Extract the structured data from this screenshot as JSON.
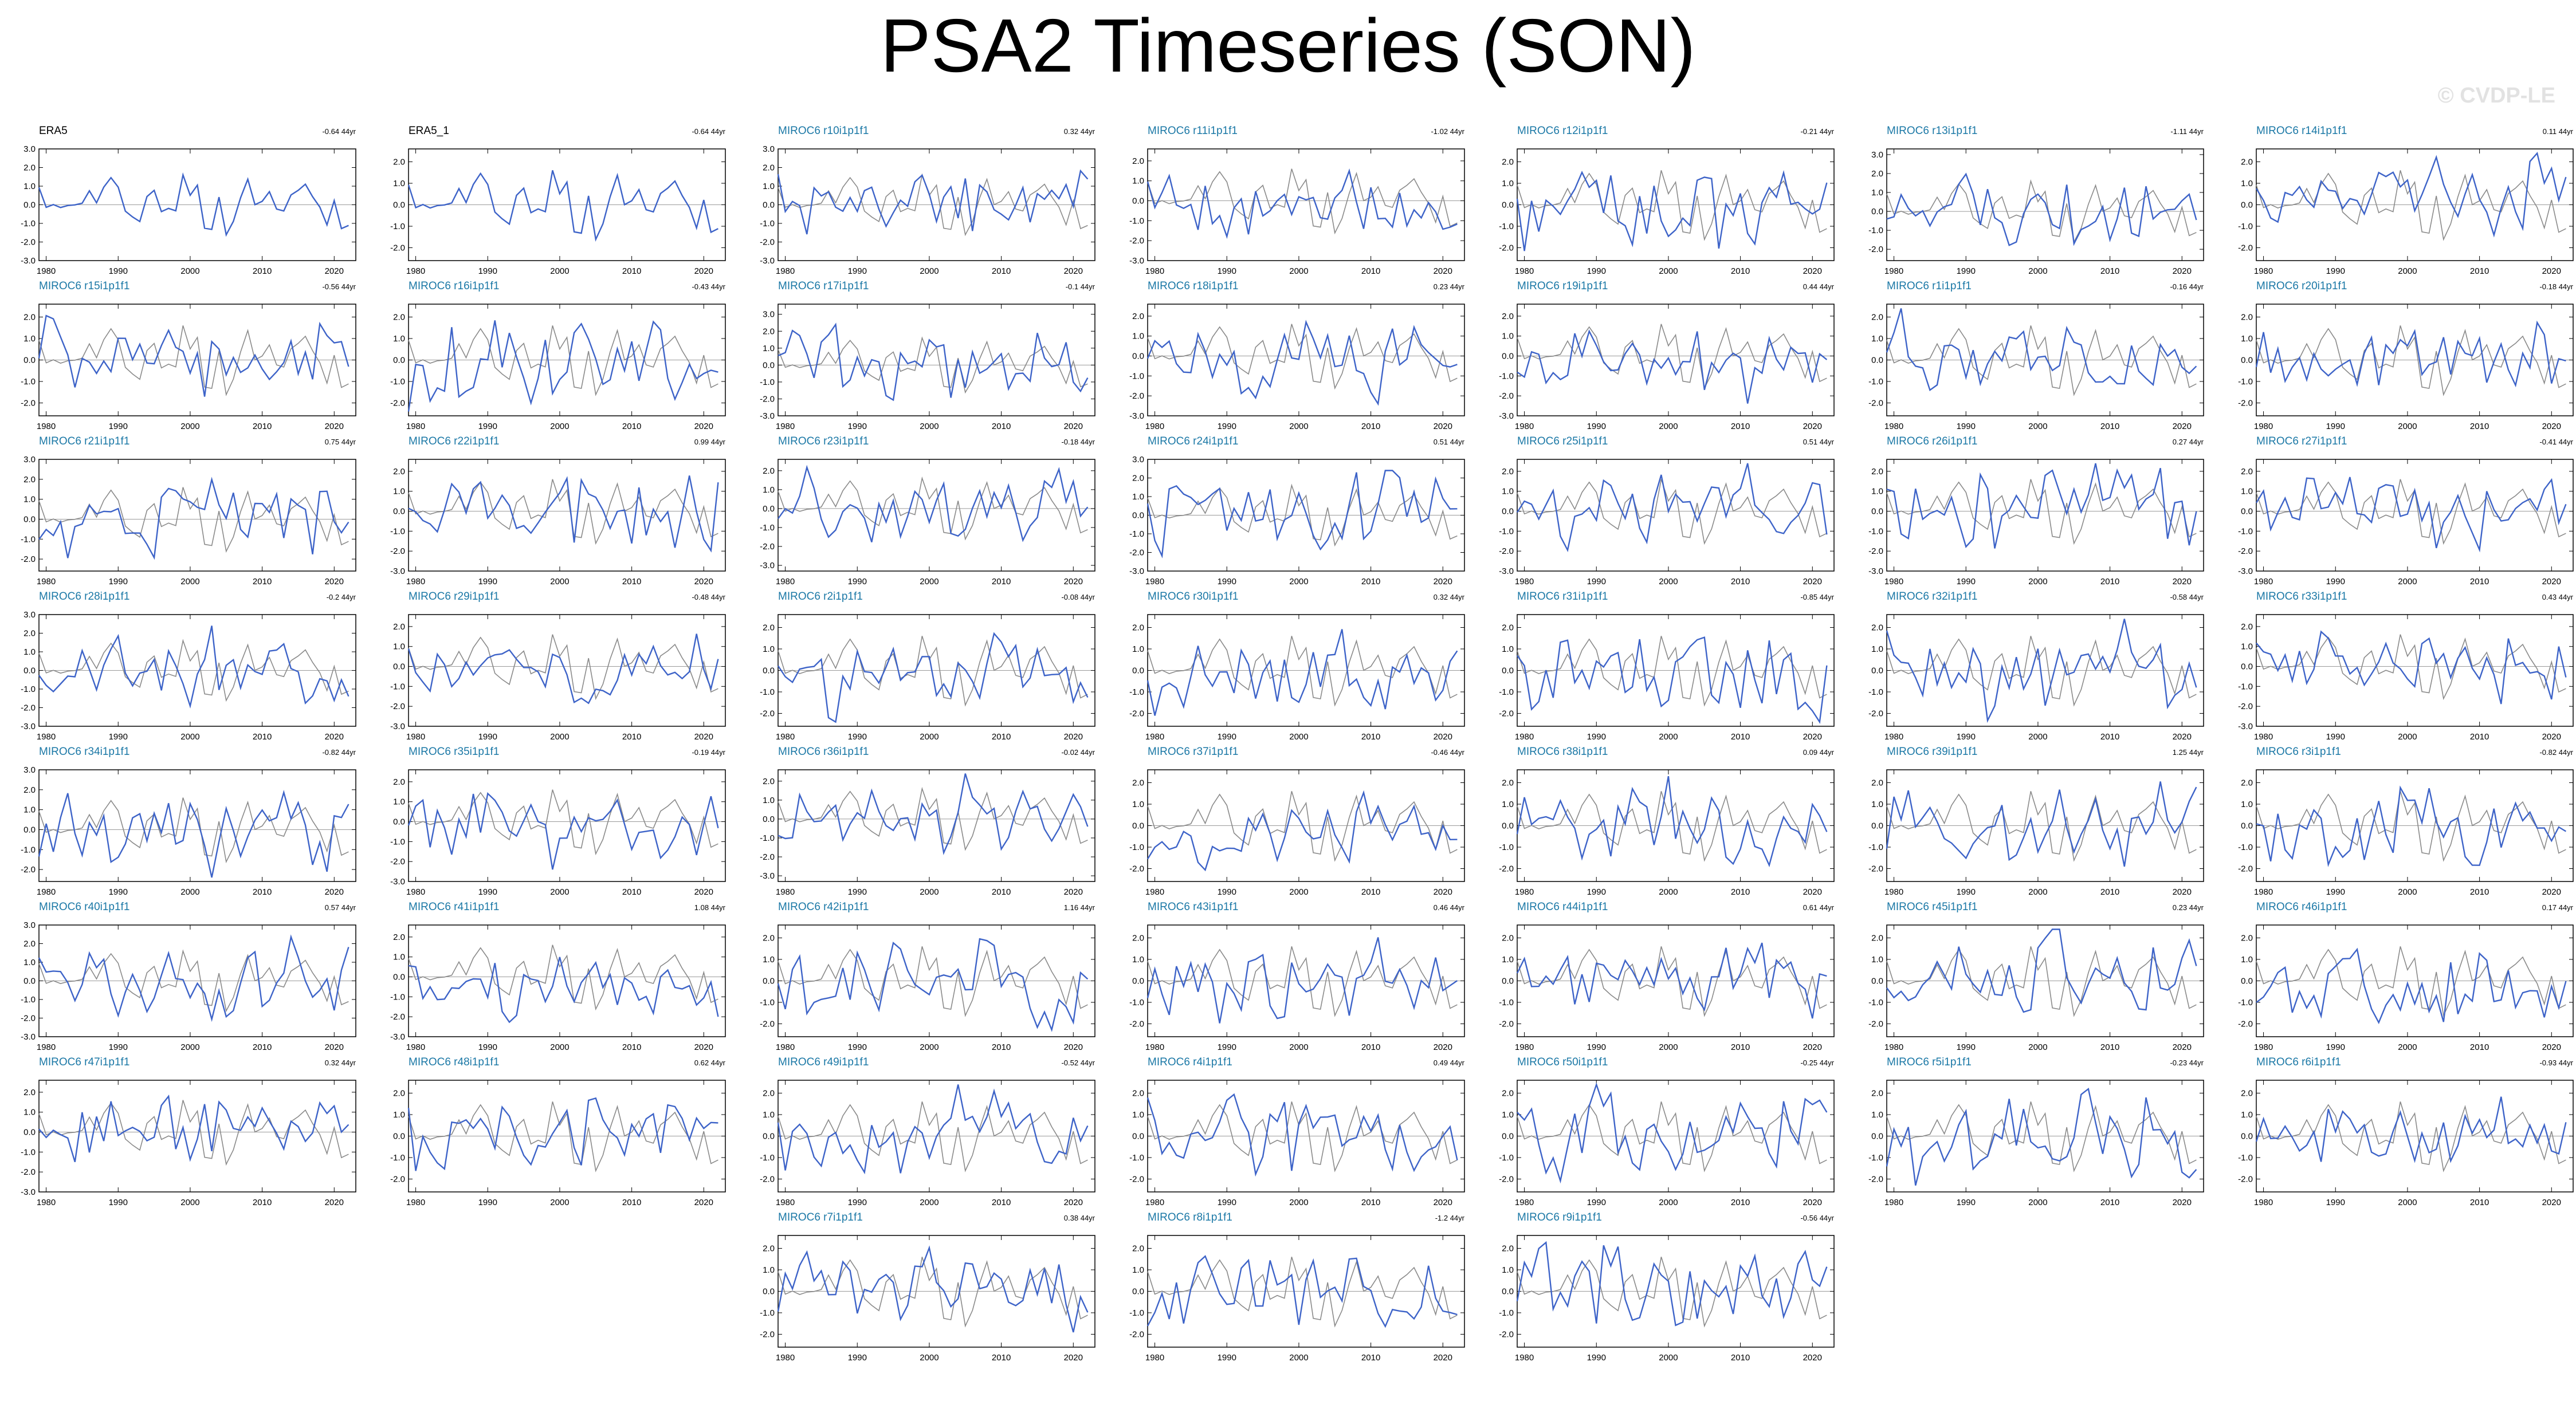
{
  "page": {
    "title": "PSA2 Timeseries (SON)",
    "watermark": "© CVDP-LE"
  },
  "chart_data": {
    "type": "line",
    "panel_count": 52,
    "x_ticks": [
      1980,
      1990,
      2000,
      2010,
      2020
    ],
    "xlim": [
      1979,
      2023
    ],
    "grid": false,
    "colors": {
      "ensemble_member": "#3d63c8",
      "observations_overlay": "#8a8a8a",
      "zero_line": "#9a9a9a",
      "observations_title": "#000000",
      "member_title": "#1b78a6"
    },
    "panels": [
      {
        "title": "ERA5",
        "trend": "-0.64 44yr",
        "yticks": [
          "3.0",
          "2.0",
          "1.0",
          "0.0",
          "-1.0",
          "-2.0",
          "-3.0"
        ],
        "ylim": [
          -3,
          3
        ]
      },
      {
        "title": "ERA5_1",
        "trend": "-0.64 44yr",
        "yticks": [
          "2.0",
          "1.0",
          "0.0",
          "-1.0",
          "-2.0"
        ],
        "ylim": [
          -2.6,
          2.6
        ]
      },
      {
        "title": "MIROC6 r10i1p1f1",
        "trend": "0.32 44yr",
        "yticks": [
          "3.0",
          "2.0",
          "1.0",
          "0.0",
          "-1.0",
          "-2.0",
          "-3.0"
        ],
        "ylim": [
          -3,
          3
        ]
      },
      {
        "title": "MIROC6 r11i1p1f1",
        "trend": "-1.02 44yr",
        "yticks": [
          "2.0",
          "1.0",
          "0.0",
          "-1.0",
          "-2.0",
          "-3.0"
        ],
        "ylim": [
          -3,
          2.6
        ]
      },
      {
        "title": "MIROC6 r12i1p1f1",
        "trend": "-0.21 44yr",
        "yticks": [
          "2.0",
          "1.0",
          "0.0",
          "-1.0",
          "-2.0"
        ],
        "ylim": [
          -2.6,
          2.6
        ]
      },
      {
        "title": "MIROC6 r13i1p1f1",
        "trend": "-1.11 44yr",
        "yticks": [
          "3.0",
          "2.0",
          "1.0",
          "0.0",
          "-1.0",
          "-2.0"
        ],
        "ylim": [
          -2.6,
          3.3
        ]
      },
      {
        "title": "MIROC6 r14i1p1f1",
        "trend": "0.11 44yr",
        "yticks": [
          "2.0",
          "1.0",
          "0.0",
          "-1.0",
          "-2.0"
        ],
        "ylim": [
          -2.6,
          2.6
        ]
      },
      {
        "title": "MIROC6 r15i1p1f1",
        "trend": "-0.56 44yr",
        "yticks": [
          "2.0",
          "1.0",
          "0.0",
          "-1.0",
          "-2.0"
        ],
        "ylim": [
          -2.6,
          2.6
        ]
      },
      {
        "title": "MIROC6 r16i1p1f1",
        "trend": "-0.43 44yr",
        "yticks": [
          "2.0",
          "1.0",
          "0.0",
          "-1.0",
          "-2.0"
        ],
        "ylim": [
          -2.6,
          2.6
        ]
      },
      {
        "title": "MIROC6 r17i1p1f1",
        "trend": "-0.1 44yr",
        "yticks": [
          "3.0",
          "2.0",
          "1.0",
          "0.0",
          "-1.0",
          "-2.0",
          "-3.0"
        ],
        "ylim": [
          -3,
          3.6
        ]
      },
      {
        "title": "MIROC6 r18i1p1f1",
        "trend": "0.23 44yr",
        "yticks": [
          "2.0",
          "1.0",
          "0.0",
          "-1.0",
          "-2.0",
          "-3.0"
        ],
        "ylim": [
          -3,
          2.6
        ]
      },
      {
        "title": "MIROC6 r19i1p1f1",
        "trend": "0.44 44yr",
        "yticks": [
          "2.0",
          "1.0",
          "0.0",
          "-1.0",
          "-2.0",
          "-3.0"
        ],
        "ylim": [
          -3,
          2.6
        ]
      },
      {
        "title": "MIROC6 r1i1p1f1",
        "trend": "-0.16 44yr",
        "yticks": [
          "2.0",
          "1.0",
          "0.0",
          "-1.0",
          "-2.0"
        ],
        "ylim": [
          -2.6,
          2.6
        ]
      },
      {
        "title": "MIROC6 r20i1p1f1",
        "trend": "-0.18 44yr",
        "yticks": [
          "2.0",
          "1.0",
          "0.0",
          "-1.0",
          "-2.0"
        ],
        "ylim": [
          -2.6,
          2.6
        ]
      },
      {
        "title": "MIROC6 r21i1p1f1",
        "trend": "0.75 44yr",
        "yticks": [
          "3.0",
          "2.0",
          "1.0",
          "0.0",
          "-1.0",
          "-2.0"
        ],
        "ylim": [
          -2.6,
          3
        ]
      },
      {
        "title": "MIROC6 r22i1p1f1",
        "trend": "0.99 44yr",
        "yticks": [
          "2.0",
          "1.0",
          "0.0",
          "-1.0",
          "-2.0",
          "-3.0"
        ],
        "ylim": [
          -3,
          2.6
        ]
      },
      {
        "title": "MIROC6 r23i1p1f1",
        "trend": "-0.18 44yr",
        "yticks": [
          "2.0",
          "1.0",
          "0.0",
          "-1.0",
          "-2.0",
          "-3.0"
        ],
        "ylim": [
          -3.3,
          2.6
        ]
      },
      {
        "title": "MIROC6 r24i1p1f1",
        "trend": "0.51 44yr",
        "yticks": [
          "3.0",
          "2.0",
          "1.0",
          "0.0",
          "-1.0",
          "-2.0",
          "-3.0"
        ],
        "ylim": [
          -3,
          3
        ]
      },
      {
        "title": "MIROC6 r25i1p1f1",
        "trend": "0.51 44yr",
        "yticks": [
          "2.0",
          "1.0",
          "0.0",
          "-1.0",
          "-2.0",
          "-3.0"
        ],
        "ylim": [
          -3,
          2.6
        ]
      },
      {
        "title": "MIROC6 r26i1p1f1",
        "trend": "0.27 44yr",
        "yticks": [
          "2.0",
          "1.0",
          "0.0",
          "-1.0",
          "-2.0",
          "-3.0"
        ],
        "ylim": [
          -3,
          2.6
        ]
      },
      {
        "title": "MIROC6 r27i1p1f1",
        "trend": "-0.41 44yr",
        "yticks": [
          "2.0",
          "1.0",
          "0.0",
          "-1.0",
          "-2.0",
          "-3.0"
        ],
        "ylim": [
          -3,
          2.6
        ]
      },
      {
        "title": "MIROC6 r28i1p1f1",
        "trend": "-0.2 44yr",
        "yticks": [
          "3.0",
          "2.0",
          "1.0",
          "0.0",
          "-1.0",
          "-2.0",
          "-3.0"
        ],
        "ylim": [
          -3,
          3
        ]
      },
      {
        "title": "MIROC6 r29i1p1f1",
        "trend": "-0.48 44yr",
        "yticks": [
          "2.0",
          "1.0",
          "0.0",
          "-1.0",
          "-2.0",
          "-3.0"
        ],
        "ylim": [
          -3,
          2.6
        ]
      },
      {
        "title": "MIROC6 r2i1p1f1",
        "trend": "-0.08 44yr",
        "yticks": [
          "2.0",
          "1.0",
          "0.0",
          "-1.0",
          "-2.0"
        ],
        "ylim": [
          -2.6,
          2.6
        ]
      },
      {
        "title": "MIROC6 r30i1p1f1",
        "trend": "0.32 44yr",
        "yticks": [
          "2.0",
          "1.0",
          "0.0",
          "-1.0",
          "-2.0"
        ],
        "ylim": [
          -2.6,
          2.6
        ]
      },
      {
        "title": "MIROC6 r31i1p1f1",
        "trend": "-0.85 44yr",
        "yticks": [
          "2.0",
          "1.0",
          "0.0",
          "-1.0",
          "-2.0"
        ],
        "ylim": [
          -2.6,
          2.6
        ]
      },
      {
        "title": "MIROC6 r32i1p1f1",
        "trend": "-0.58 44yr",
        "yticks": [
          "2.0",
          "1.0",
          "0.0",
          "-1.0",
          "-2.0"
        ],
        "ylim": [
          -2.6,
          2.6
        ]
      },
      {
        "title": "MIROC6 r33i1p1f1",
        "trend": "0.43 44yr",
        "yticks": [
          "2.0",
          "1.0",
          "0.0",
          "-1.0",
          "-2.0",
          "-3.0"
        ],
        "ylim": [
          -3,
          2.6
        ]
      },
      {
        "title": "MIROC6 r34i1p1f1",
        "trend": "-0.82 44yr",
        "yticks": [
          "3.0",
          "2.0",
          "1.0",
          "0.0",
          "-1.0",
          "-2.0"
        ],
        "ylim": [
          -2.6,
          3
        ]
      },
      {
        "title": "MIROC6 r35i1p1f1",
        "trend": "-0.19 44yr",
        "yticks": [
          "2.0",
          "1.0",
          "0.0",
          "-1.0",
          "-2.0",
          "-3.0"
        ],
        "ylim": [
          -3,
          2.6
        ]
      },
      {
        "title": "MIROC6 r36i1p1f1",
        "trend": "-0.02 44yr",
        "yticks": [
          "2.0",
          "1.0",
          "0.0",
          "-1.0",
          "-2.0",
          "-3.0"
        ],
        "ylim": [
          -3.3,
          2.6
        ]
      },
      {
        "title": "MIROC6 r37i1p1f1",
        "trend": "-0.46 44yr",
        "yticks": [
          "2.0",
          "1.0",
          "0.0",
          "-1.0",
          "-2.0"
        ],
        "ylim": [
          -2.6,
          2.6
        ]
      },
      {
        "title": "MIROC6 r38i1p1f1",
        "trend": "0.09 44yr",
        "yticks": [
          "2.0",
          "1.0",
          "0.0",
          "-1.0",
          "-2.0"
        ],
        "ylim": [
          -2.6,
          2.6
        ]
      },
      {
        "title": "MIROC6 r39i1p1f1",
        "trend": "1.25 44yr",
        "yticks": [
          "2.0",
          "1.0",
          "0.0",
          "-1.0",
          "-2.0"
        ],
        "ylim": [
          -2.6,
          2.6
        ]
      },
      {
        "title": "MIROC6 r3i1p1f1",
        "trend": "-0.82 44yr",
        "yticks": [
          "2.0",
          "1.0",
          "0.0",
          "-1.0",
          "-2.0"
        ],
        "ylim": [
          -2.6,
          2.6
        ]
      },
      {
        "title": "MIROC6 r40i1p1f1",
        "trend": "0.57 44yr",
        "yticks": [
          "3.0",
          "2.0",
          "1.0",
          "0.0",
          "-1.0",
          "-2.0",
          "-3.0"
        ],
        "ylim": [
          -3,
          3
        ]
      },
      {
        "title": "MIROC6 r41i1p1f1",
        "trend": "1.08 44yr",
        "yticks": [
          "2.0",
          "1.0",
          "0.0",
          "-1.0",
          "-2.0",
          "-3.0"
        ],
        "ylim": [
          -3,
          2.6
        ]
      },
      {
        "title": "MIROC6 r42i1p1f1",
        "trend": "1.16 44yr",
        "yticks": [
          "2.0",
          "1.0",
          "0.0",
          "-1.0",
          "-2.0"
        ],
        "ylim": [
          -2.6,
          2.6
        ]
      },
      {
        "title": "MIROC6 r43i1p1f1",
        "trend": "0.46 44yr",
        "yticks": [
          "2.0",
          "1.0",
          "0.0",
          "-1.0",
          "-2.0"
        ],
        "ylim": [
          -2.6,
          2.6
        ]
      },
      {
        "title": "MIROC6 r44i1p1f1",
        "trend": "0.61 44yr",
        "yticks": [
          "2.0",
          "1.0",
          "0.0",
          "-1.0",
          "-2.0"
        ],
        "ylim": [
          -2.6,
          2.6
        ]
      },
      {
        "title": "MIROC6 r45i1p1f1",
        "trend": "0.23 44yr",
        "yticks": [
          "2.0",
          "1.0",
          "0.0",
          "-1.0",
          "-2.0"
        ],
        "ylim": [
          -2.6,
          2.6
        ]
      },
      {
        "title": "MIROC6 r46i1p1f1",
        "trend": "0.17 44yr",
        "yticks": [
          "2.0",
          "1.0",
          "0.0",
          "-1.0",
          "-2.0"
        ],
        "ylim": [
          -2.6,
          2.6
        ]
      },
      {
        "title": "MIROC6 r47i1p1f1",
        "trend": "0.32 44yr",
        "yticks": [
          "2.0",
          "1.0",
          "0.0",
          "-1.0",
          "-2.0",
          "-3.0"
        ],
        "ylim": [
          -3,
          2.6
        ]
      },
      {
        "title": "MIROC6 r48i1p1f1",
        "trend": "0.62 44yr",
        "yticks": [
          "2.0",
          "1.0",
          "0.0",
          "-1.0",
          "-2.0"
        ],
        "ylim": [
          -2.6,
          2.6
        ]
      },
      {
        "title": "MIROC6 r49i1p1f1",
        "trend": "-0.52 44yr",
        "yticks": [
          "2.0",
          "1.0",
          "0.0",
          "-1.0",
          "-2.0"
        ],
        "ylim": [
          -2.6,
          2.6
        ]
      },
      {
        "title": "MIROC6 r4i1p1f1",
        "trend": "0.49 44yr",
        "yticks": [
          "2.0",
          "1.0",
          "0.0",
          "-1.0",
          "-2.0"
        ],
        "ylim": [
          -2.6,
          2.6
        ]
      },
      {
        "title": "MIROC6 r50i1p1f1",
        "trend": "-0.25 44yr",
        "yticks": [
          "2.0",
          "1.0",
          "0.0",
          "-1.0",
          "-2.0"
        ],
        "ylim": [
          -2.6,
          2.6
        ]
      },
      {
        "title": "MIROC6 r5i1p1f1",
        "trend": "-0.23 44yr",
        "yticks": [
          "2.0",
          "1.0",
          "0.0",
          "-1.0",
          "-2.0"
        ],
        "ylim": [
          -2.6,
          2.6
        ]
      },
      {
        "title": "MIROC6 r6i1p1f1",
        "trend": "-0.93 44yr",
        "yticks": [
          "2.0",
          "1.0",
          "0.0",
          "-1.0",
          "-2.0"
        ],
        "ylim": [
          -2.6,
          2.6
        ]
      },
      {
        "title": "MIROC6 r7i1p1f1",
        "trend": "0.38 44yr",
        "yticks": [
          "2.0",
          "1.0",
          "0.0",
          "-1.0",
          "-2.0"
        ],
        "ylim": [
          -2.6,
          2.6
        ]
      },
      {
        "title": "MIROC6 r8i1p1f1",
        "trend": "-1.2 44yr",
        "yticks": [
          "2.0",
          "1.0",
          "0.0",
          "-1.0",
          "-2.0"
        ],
        "ylim": [
          -2.6,
          2.6
        ]
      },
      {
        "title": "MIROC6 r9i1p1f1",
        "trend": "-0.56 44yr",
        "yticks": [
          "2.0",
          "1.0",
          "0.0",
          "-1.0",
          "-2.0"
        ],
        "ylim": [
          -2.6,
          2.6
        ]
      }
    ]
  }
}
